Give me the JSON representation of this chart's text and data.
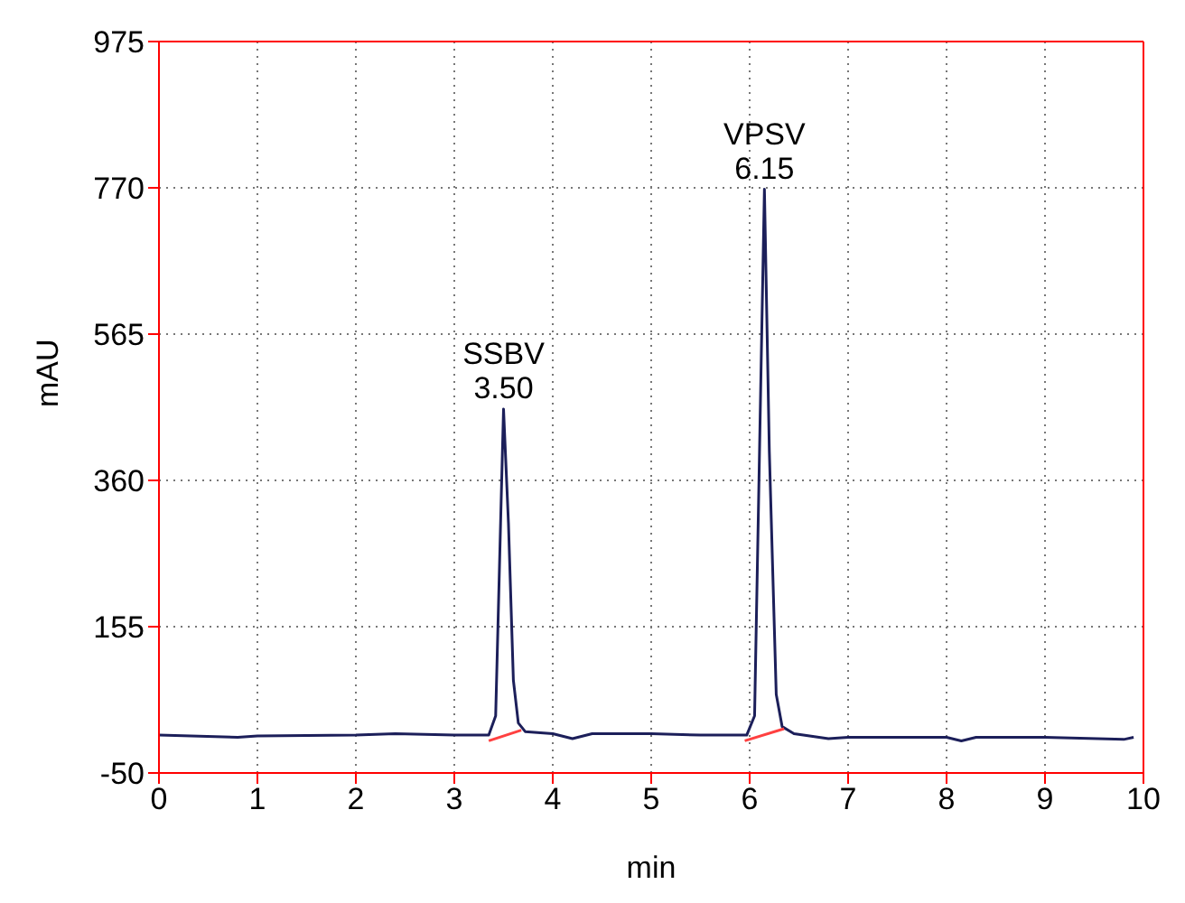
{
  "chart_data": {
    "type": "line",
    "xlabel": "min",
    "ylabel": "mAU",
    "xlim": [
      0,
      10
    ],
    "xticks": [
      0,
      1,
      2,
      3,
      4,
      5,
      6,
      7,
      8,
      9,
      10
    ],
    "ylim": [
      -50,
      975
    ],
    "yticks": [
      -50,
      155,
      360,
      565,
      770,
      975
    ],
    "grid": true,
    "marker": "none",
    "line_style": "solid",
    "series": [
      {
        "color": "#1c1f5a",
        "x": [
          0,
          0.8,
          1.0,
          2.0,
          2.4,
          3.0,
          3.35,
          3.42,
          3.47,
          3.5,
          3.55,
          3.6,
          3.65,
          3.72,
          4.0,
          4.2,
          4.4,
          5.0,
          5.5,
          5.97,
          6.05,
          6.1,
          6.15,
          6.2,
          6.27,
          6.33,
          6.45,
          6.8,
          7.0,
          7.5,
          8.0,
          8.15,
          8.3,
          9.0,
          9.8,
          9.9
        ],
        "values": [
          3,
          0,
          2,
          3,
          5,
          3,
          3,
          30,
          300,
          460,
          300,
          80,
          20,
          8,
          5,
          -2,
          5,
          5,
          3,
          3,
          30,
          400,
          768,
          400,
          60,
          15,
          5,
          -2,
          0,
          0,
          0,
          -5,
          0,
          0,
          -3,
          0
        ]
      },
      {
        "color": "#ff4040",
        "x": [
          3.35,
          3.68
        ],
        "values": [
          -5,
          10
        ]
      },
      {
        "color": "#ff4040",
        "x": [
          5.95,
          6.35
        ],
        "values": [
          -5,
          12
        ]
      }
    ],
    "annotations": [
      {
        "text": "SSBV\n3.50",
        "x": 3.5,
        "y": 460
      },
      {
        "text": "VPSV\n6.15",
        "x": 6.15,
        "y": 768
      }
    ]
  }
}
